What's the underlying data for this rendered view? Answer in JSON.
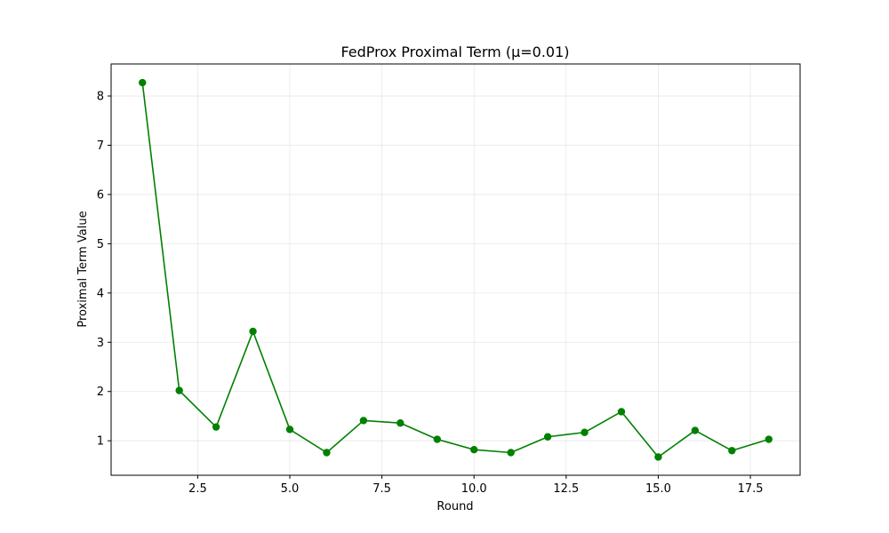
{
  "chart_data": {
    "type": "line",
    "title": "FedProx Proximal Term (μ=0.01)",
    "xlabel": "Round",
    "ylabel": "Proximal Term Value",
    "xlim": [
      0.15,
      18.85
    ],
    "ylim": [
      0.3,
      8.65
    ],
    "xticks": [
      2.5,
      5.0,
      7.5,
      10.0,
      12.5,
      15.0,
      17.5
    ],
    "xtick_labels": [
      "2.5",
      "5.0",
      "7.5",
      "10.0",
      "12.5",
      "15.0",
      "17.5"
    ],
    "yticks": [
      1,
      2,
      3,
      4,
      5,
      6,
      7,
      8
    ],
    "ytick_labels": [
      "1",
      "2",
      "3",
      "4",
      "5",
      "6",
      "7",
      "8"
    ],
    "grid": true,
    "color": "#008000",
    "marker": "circle",
    "x": [
      1,
      2,
      3,
      4,
      5,
      6,
      7,
      8,
      9,
      10,
      11,
      12,
      13,
      14,
      15,
      16,
      17,
      18
    ],
    "y": [
      8.27,
      2.02,
      1.28,
      3.22,
      1.23,
      0.76,
      1.41,
      1.36,
      1.03,
      0.82,
      0.76,
      1.08,
      1.17,
      1.59,
      0.67,
      1.21,
      0.8,
      1.03
    ]
  }
}
